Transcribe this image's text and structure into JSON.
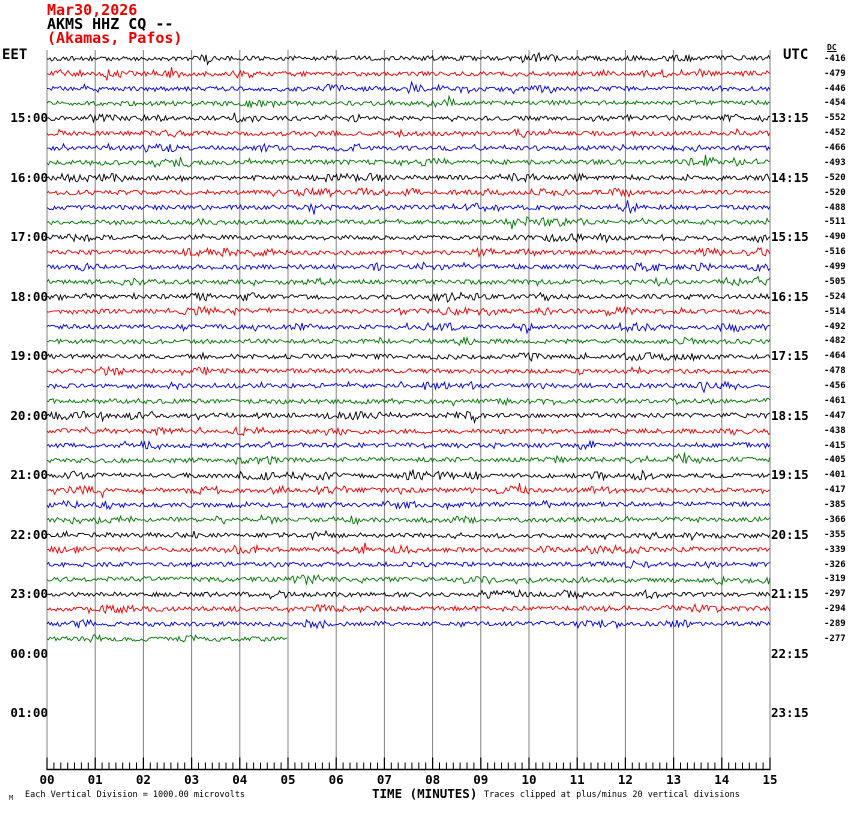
{
  "header": {
    "date": "Mar30,2026",
    "station_line": "AKMS HHZ CQ --",
    "location_line": "(Akamas, Pafos)"
  },
  "axis": {
    "left_tz": "EET",
    "right_tz": "UTC",
    "dc_header": "DC"
  },
  "footer": {
    "watermark": "M",
    "scale_note": "Each Vertical Division = 1000.00 microvolts",
    "clip_note": "Traces clipped at plus/minus 20 vertical divisions"
  },
  "colors": {
    "title_accent": "#ee0000",
    "text": "#000000",
    "grid": "#808080",
    "axis_line": "#000000"
  },
  "chart_data": {
    "type": "line",
    "subtype": "helicorder-seismogram",
    "station": "AKMS HHZ CQ --",
    "date": "Mar30,2026",
    "location": "(Akamas, Pafos)",
    "xlabel": "TIME (MINUTES)",
    "x_range_minutes": [
      0,
      15
    ],
    "x_tick_labels": [
      "00",
      "01",
      "02",
      "03",
      "04",
      "05",
      "06",
      "07",
      "08",
      "09",
      "10",
      "11",
      "12",
      "13",
      "14",
      "15"
    ],
    "minor_ticks_per_minute": 6,
    "minutes_per_row": 15,
    "rows_total_traces": 40,
    "trace_color_cycle": [
      "#000000",
      "#ee0000",
      "#0000dd",
      "#007700"
    ],
    "dc_offsets": [
      -416,
      -479,
      -446,
      -454,
      -552,
      -452,
      -466,
      -493,
      -520,
      -520,
      -488,
      -511,
      -490,
      -516,
      -499,
      -505,
      -524,
      -514,
      -492,
      -482,
      -464,
      -478,
      -456,
      -461,
      -447,
      -438,
      -415,
      -405,
      -401,
      -417,
      -385,
      -366,
      -355,
      -339,
      -326,
      -319,
      -297,
      -294,
      -289,
      -277
    ],
    "left_time_labels_eet": [
      {
        "row": 4,
        "text": "15:00"
      },
      {
        "row": 8,
        "text": "16:00"
      },
      {
        "row": 12,
        "text": "17:00"
      },
      {
        "row": 16,
        "text": "18:00"
      },
      {
        "row": 20,
        "text": "19:00"
      },
      {
        "row": 24,
        "text": "20:00"
      },
      {
        "row": 28,
        "text": "21:00"
      },
      {
        "row": 32,
        "text": "22:00"
      },
      {
        "row": 36,
        "text": "23:00"
      },
      {
        "row": 40,
        "text": "00:00"
      },
      {
        "row": 44,
        "text": "01:00"
      }
    ],
    "right_time_labels_utc": [
      {
        "row": 4,
        "text": "13:15"
      },
      {
        "row": 8,
        "text": "14:15"
      },
      {
        "row": 12,
        "text": "15:15"
      },
      {
        "row": 16,
        "text": "16:15"
      },
      {
        "row": 20,
        "text": "17:15"
      },
      {
        "row": 24,
        "text": "18:15"
      },
      {
        "row": 28,
        "text": "19:15"
      },
      {
        "row": 32,
        "text": "20:15"
      },
      {
        "row": 36,
        "text": "21:15"
      },
      {
        "row": 40,
        "text": "22:15"
      },
      {
        "row": 44,
        "text": "23:15"
      }
    ],
    "last_trace_partial": {
      "row_index": 39,
      "end_minute": 5
    }
  }
}
